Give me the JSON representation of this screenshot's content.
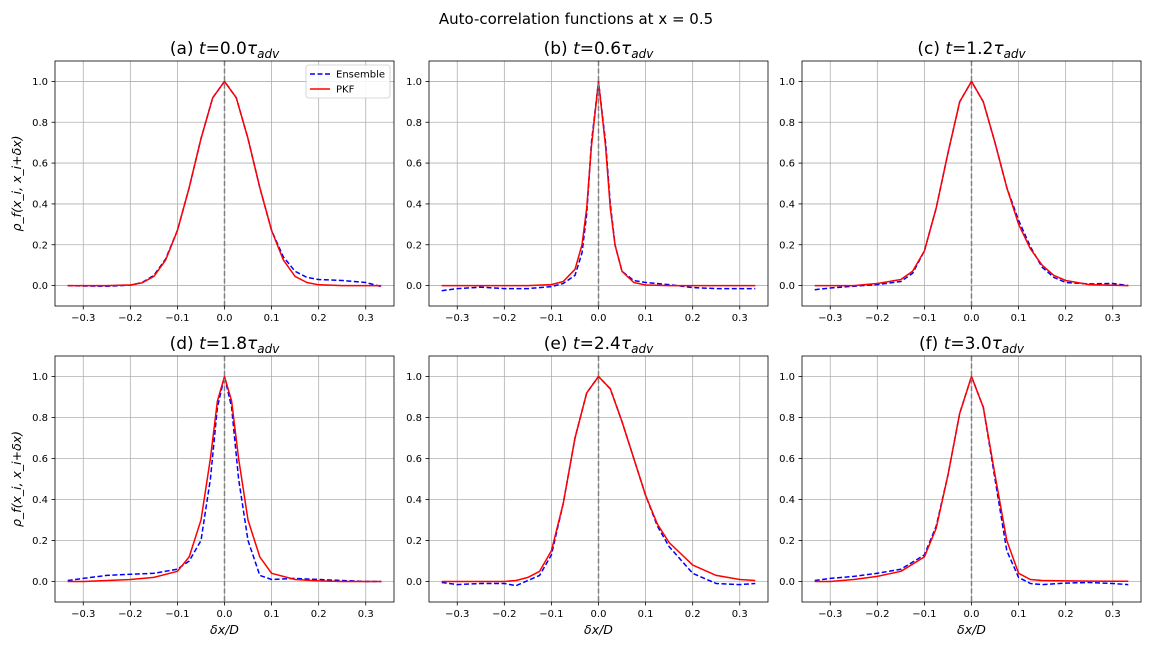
{
  "figure": {
    "suptitle": "Auto-correlation functions at x = 0.5",
    "colors": {
      "ensemble": "#0000ff",
      "pkf": "#ff0000",
      "center_line": "#808080",
      "grid": "#b0b0b0"
    }
  },
  "chart_data": [
    {
      "type": "line",
      "title": "(a) t=0.0τadv",
      "xlabel": "",
      "ylabel": "ρ_f(x_i, x_i+δx)",
      "xlim": [
        -0.36,
        0.36
      ],
      "ylim": [
        -0.1,
        1.1
      ],
      "xticks": [
        -0.3,
        -0.2,
        -0.1,
        0.0,
        0.1,
        0.2,
        0.3
      ],
      "yticks": [
        0.0,
        0.2,
        0.4,
        0.6,
        0.8,
        1.0
      ],
      "grid": true,
      "legend": {
        "placement": "top-right",
        "entries": [
          "Ensemble",
          "PKF"
        ]
      },
      "series": [
        {
          "name": "Ensemble",
          "style": "dashed",
          "x": [
            -0.333,
            -0.3,
            -0.25,
            -0.2,
            -0.175,
            -0.15,
            -0.125,
            -0.1,
            -0.075,
            -0.05,
            -0.025,
            0,
            0.025,
            0.05,
            0.075,
            0.1,
            0.125,
            0.15,
            0.175,
            0.2,
            0.25,
            0.3,
            0.333
          ],
          "y": [
            0,
            -0.002,
            -0.003,
            0.002,
            0.015,
            0.05,
            0.13,
            0.27,
            0.48,
            0.72,
            0.92,
            1.0,
            0.92,
            0.72,
            0.48,
            0.27,
            0.14,
            0.07,
            0.04,
            0.03,
            0.025,
            0.015,
            -0.005
          ]
        },
        {
          "name": "PKF",
          "style": "solid",
          "x": [
            -0.333,
            -0.3,
            -0.25,
            -0.2,
            -0.175,
            -0.15,
            -0.125,
            -0.1,
            -0.075,
            -0.05,
            -0.025,
            0,
            0.025,
            0.05,
            0.075,
            0.1,
            0.125,
            0.15,
            0.175,
            0.2,
            0.25,
            0.3,
            0.333
          ],
          "y": [
            0,
            0,
            0,
            0.003,
            0.013,
            0.045,
            0.125,
            0.27,
            0.48,
            0.72,
            0.92,
            1.0,
            0.92,
            0.72,
            0.48,
            0.27,
            0.125,
            0.045,
            0.015,
            0.004,
            0,
            0,
            0
          ]
        }
      ]
    },
    {
      "type": "line",
      "title": "(b) t=0.6τadv",
      "xlabel": "",
      "ylabel": "",
      "xlim": [
        -0.36,
        0.36
      ],
      "ylim": [
        -0.1,
        1.1
      ],
      "xticks": [
        -0.3,
        -0.2,
        -0.1,
        0.0,
        0.1,
        0.2,
        0.3
      ],
      "yticks": [
        0.0,
        0.2,
        0.4,
        0.6,
        0.8,
        1.0
      ],
      "grid": true,
      "series": [
        {
          "name": "Ensemble",
          "style": "dashed",
          "x": [
            -0.333,
            -0.3,
            -0.25,
            -0.2,
            -0.15,
            -0.1,
            -0.075,
            -0.05,
            -0.035,
            -0.025,
            -0.015,
            0,
            0.015,
            0.025,
            0.035,
            0.05,
            0.075,
            0.1,
            0.15,
            0.2,
            0.25,
            0.3,
            0.333
          ],
          "y": [
            -0.025,
            -0.015,
            -0.008,
            -0.015,
            -0.015,
            -0.005,
            0.01,
            0.05,
            0.16,
            0.35,
            0.7,
            1.0,
            0.7,
            0.4,
            0.2,
            0.07,
            0.025,
            0.015,
            0.005,
            -0.01,
            -0.015,
            -0.015,
            -0.015
          ]
        },
        {
          "name": "PKF",
          "style": "solid",
          "x": [
            -0.333,
            -0.3,
            -0.25,
            -0.2,
            -0.15,
            -0.1,
            -0.075,
            -0.05,
            -0.035,
            -0.025,
            -0.015,
            0,
            0.015,
            0.025,
            0.035,
            0.05,
            0.075,
            0.1,
            0.15,
            0.2,
            0.25,
            0.3,
            0.333
          ],
          "y": [
            0,
            0,
            0,
            0,
            0,
            0.005,
            0.02,
            0.08,
            0.2,
            0.38,
            0.68,
            1.0,
            0.68,
            0.38,
            0.2,
            0.07,
            0.015,
            0.003,
            0,
            0,
            0,
            0,
            0
          ]
        }
      ]
    },
    {
      "type": "line",
      "title": "(c) t=1.2τadv",
      "xlabel": "",
      "ylabel": "",
      "xlim": [
        -0.36,
        0.36
      ],
      "ylim": [
        -0.1,
        1.1
      ],
      "xticks": [
        -0.3,
        -0.2,
        -0.1,
        0.0,
        0.1,
        0.2,
        0.3
      ],
      "yticks": [
        0.0,
        0.2,
        0.4,
        0.6,
        0.8,
        1.0
      ],
      "grid": true,
      "series": [
        {
          "name": "Ensemble",
          "style": "dashed",
          "x": [
            -0.333,
            -0.3,
            -0.25,
            -0.2,
            -0.15,
            -0.125,
            -0.1,
            -0.075,
            -0.05,
            -0.025,
            0,
            0.025,
            0.05,
            0.075,
            0.1,
            0.125,
            0.15,
            0.175,
            0.2,
            0.25,
            0.3,
            0.333
          ],
          "y": [
            -0.02,
            -0.012,
            -0.003,
            0.005,
            0.02,
            0.06,
            0.17,
            0.38,
            0.65,
            0.9,
            1.0,
            0.9,
            0.7,
            0.48,
            0.32,
            0.19,
            0.09,
            0.04,
            0.015,
            0.008,
            0.01,
            0
          ]
        },
        {
          "name": "PKF",
          "style": "solid",
          "x": [
            -0.333,
            -0.3,
            -0.25,
            -0.2,
            -0.15,
            -0.125,
            -0.1,
            -0.075,
            -0.05,
            -0.025,
            0,
            0.025,
            0.05,
            0.075,
            0.1,
            0.125,
            0.15,
            0.175,
            0.2,
            0.25,
            0.3,
            0.333
          ],
          "y": [
            0,
            0,
            0,
            0.01,
            0.03,
            0.07,
            0.17,
            0.38,
            0.65,
            0.9,
            1.0,
            0.9,
            0.7,
            0.48,
            0.3,
            0.18,
            0.1,
            0.05,
            0.025,
            0.005,
            0.002,
            0
          ]
        }
      ]
    },
    {
      "type": "line",
      "title": "(d) t=1.8τadv",
      "xlabel": "δx/D",
      "ylabel": "ρ_f(x_i, x_i+δx)",
      "xlim": [
        -0.36,
        0.36
      ],
      "ylim": [
        -0.1,
        1.1
      ],
      "xticks": [
        -0.3,
        -0.2,
        -0.1,
        0.0,
        0.1,
        0.2,
        0.3
      ],
      "yticks": [
        0.0,
        0.2,
        0.4,
        0.6,
        0.8,
        1.0
      ],
      "grid": true,
      "series": [
        {
          "name": "Ensemble",
          "style": "dashed",
          "x": [
            -0.333,
            -0.3,
            -0.25,
            -0.2,
            -0.15,
            -0.1,
            -0.075,
            -0.05,
            -0.03,
            -0.015,
            0,
            0.015,
            0.03,
            0.05,
            0.075,
            0.1,
            0.15,
            0.2,
            0.25,
            0.3,
            0.333
          ],
          "y": [
            0.005,
            0.015,
            0.03,
            0.035,
            0.04,
            0.06,
            0.1,
            0.2,
            0.5,
            0.85,
            1.0,
            0.85,
            0.5,
            0.2,
            0.03,
            0.01,
            0.015,
            0.01,
            0.005,
            0,
            0
          ]
        },
        {
          "name": "PKF",
          "style": "solid",
          "x": [
            -0.333,
            -0.3,
            -0.25,
            -0.2,
            -0.15,
            -0.1,
            -0.075,
            -0.05,
            -0.03,
            -0.015,
            0,
            0.015,
            0.03,
            0.05,
            0.075,
            0.1,
            0.15,
            0.2,
            0.25,
            0.3,
            0.333
          ],
          "y": [
            0,
            0,
            0.005,
            0.01,
            0.02,
            0.05,
            0.12,
            0.3,
            0.6,
            0.88,
            1.0,
            0.88,
            0.6,
            0.3,
            0.12,
            0.04,
            0.01,
            0.003,
            0,
            0,
            0
          ]
        }
      ]
    },
    {
      "type": "line",
      "title": "(e) t=2.4τadv",
      "xlabel": "δx/D",
      "ylabel": "",
      "xlim": [
        -0.36,
        0.36
      ],
      "ylim": [
        -0.1,
        1.1
      ],
      "xticks": [
        -0.3,
        -0.2,
        -0.1,
        0.0,
        0.1,
        0.2,
        0.3
      ],
      "yticks": [
        0.0,
        0.2,
        0.4,
        0.6,
        0.8,
        1.0
      ],
      "grid": true,
      "series": [
        {
          "name": "Ensemble",
          "style": "dashed",
          "x": [
            -0.333,
            -0.3,
            -0.25,
            -0.2,
            -0.175,
            -0.15,
            -0.125,
            -0.1,
            -0.075,
            -0.05,
            -0.025,
            0,
            0.025,
            0.05,
            0.075,
            0.1,
            0.125,
            0.15,
            0.2,
            0.25,
            0.3,
            0.333
          ],
          "y": [
            -0.005,
            -0.015,
            -0.01,
            -0.01,
            -0.02,
            0.005,
            0.03,
            0.13,
            0.38,
            0.7,
            0.92,
            1.0,
            0.94,
            0.78,
            0.6,
            0.42,
            0.27,
            0.17,
            0.04,
            -0.01,
            -0.015,
            -0.01
          ]
        },
        {
          "name": "PKF",
          "style": "solid",
          "x": [
            -0.333,
            -0.3,
            -0.25,
            -0.2,
            -0.175,
            -0.15,
            -0.125,
            -0.1,
            -0.075,
            -0.05,
            -0.025,
            0,
            0.025,
            0.05,
            0.075,
            0.1,
            0.125,
            0.15,
            0.2,
            0.25,
            0.3,
            0.333
          ],
          "y": [
            0,
            0,
            0,
            0,
            0.005,
            0.02,
            0.05,
            0.15,
            0.38,
            0.7,
            0.92,
            1.0,
            0.94,
            0.78,
            0.6,
            0.42,
            0.28,
            0.19,
            0.08,
            0.03,
            0.01,
            0.005
          ]
        }
      ]
    },
    {
      "type": "line",
      "title": "(f) t=3.0τadv",
      "xlabel": "δx/D",
      "ylabel": "",
      "xlim": [
        -0.36,
        0.36
      ],
      "ylim": [
        -0.1,
        1.1
      ],
      "xticks": [
        -0.3,
        -0.2,
        -0.1,
        0.0,
        0.1,
        0.2,
        0.3
      ],
      "yticks": [
        0.0,
        0.2,
        0.4,
        0.6,
        0.8,
        1.0
      ],
      "grid": true,
      "series": [
        {
          "name": "Ensemble",
          "style": "dashed",
          "x": [
            -0.333,
            -0.3,
            -0.25,
            -0.2,
            -0.15,
            -0.1,
            -0.075,
            -0.05,
            -0.025,
            0,
            0.025,
            0.05,
            0.075,
            0.1,
            0.125,
            0.15,
            0.2,
            0.25,
            0.3,
            0.333
          ],
          "y": [
            0.005,
            0.015,
            0.025,
            0.04,
            0.06,
            0.13,
            0.27,
            0.52,
            0.82,
            1.0,
            0.85,
            0.5,
            0.15,
            0.02,
            -0.01,
            -0.015,
            -0.008,
            -0.005,
            -0.01,
            -0.015
          ]
        },
        {
          "name": "PKF",
          "style": "solid",
          "x": [
            -0.333,
            -0.3,
            -0.25,
            -0.2,
            -0.15,
            -0.1,
            -0.075,
            -0.05,
            -0.025,
            0,
            0.025,
            0.05,
            0.075,
            0.1,
            0.125,
            0.15,
            0.2,
            0.25,
            0.3,
            0.333
          ],
          "y": [
            0,
            0,
            0.01,
            0.025,
            0.05,
            0.12,
            0.26,
            0.52,
            0.82,
            1.0,
            0.85,
            0.52,
            0.2,
            0.04,
            0.01,
            0.005,
            0.003,
            0.002,
            0.001,
            0.001
          ]
        }
      ]
    }
  ]
}
